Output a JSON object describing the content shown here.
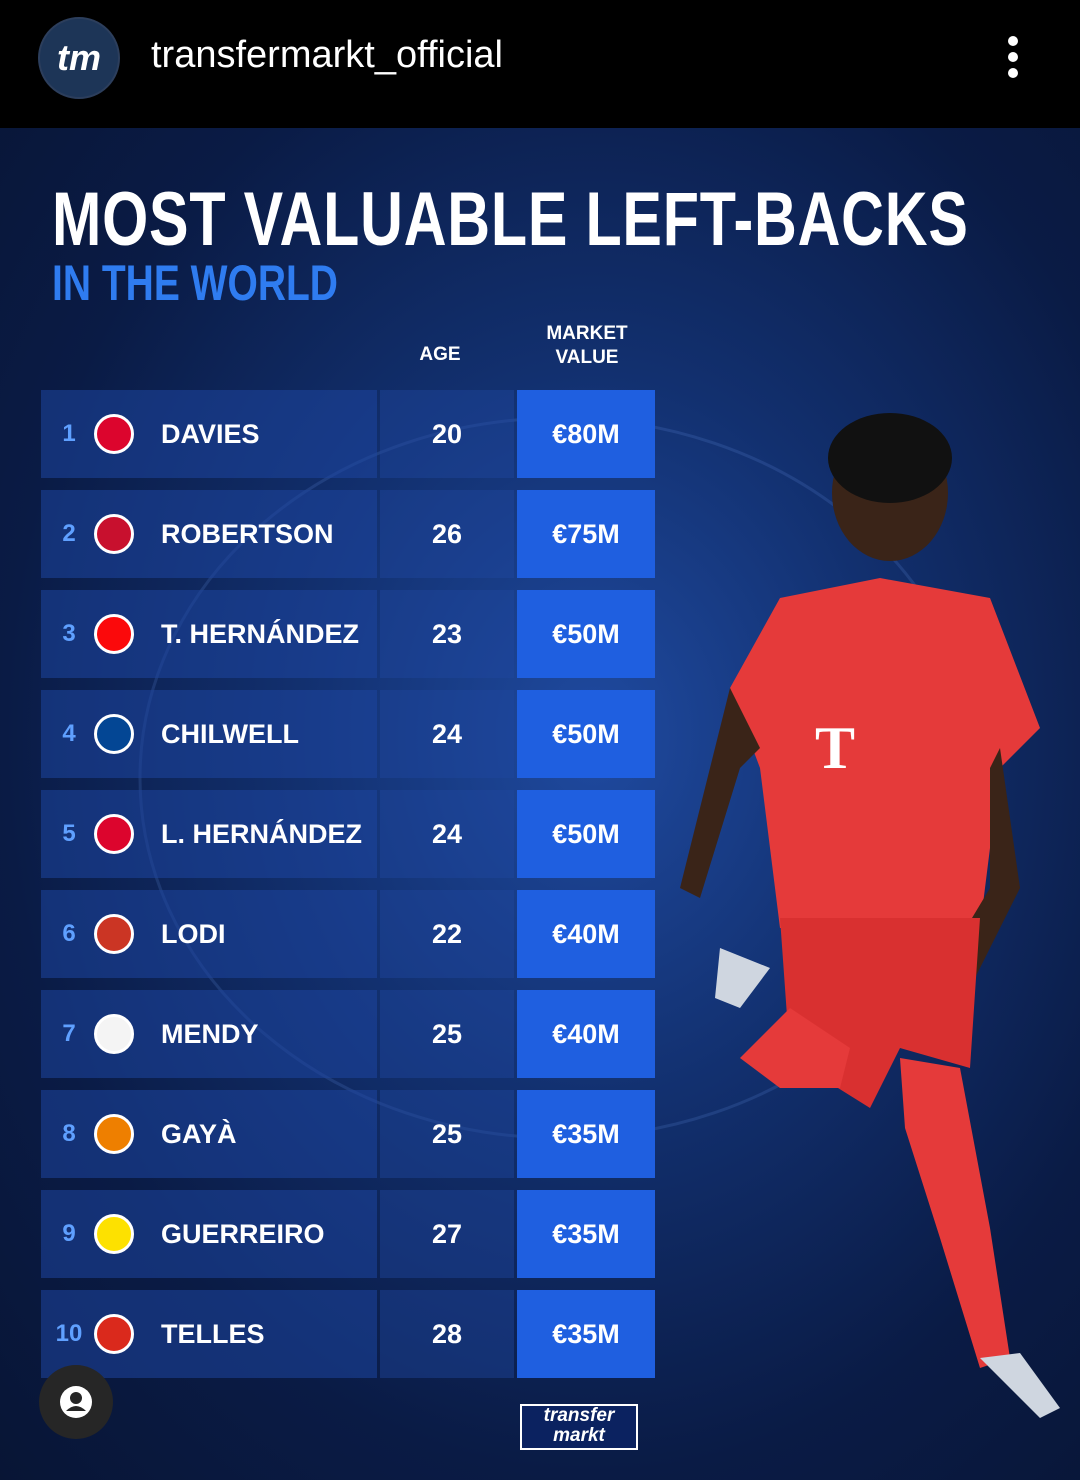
{
  "header": {
    "logo": "tm",
    "account": "transfermarkt_official"
  },
  "post": {
    "title": "MOST VALUABLE LEFT-BACKS",
    "subtitle": "IN THE WORLD",
    "table": {
      "columns": [
        "AGE",
        "MARKET VALUE"
      ],
      "rows": [
        {
          "rank": 1,
          "name": "DAVIES",
          "age": 20,
          "value": "€80M"
        },
        {
          "rank": 2,
          "name": "ROBERTSON",
          "age": 26,
          "value": "€75M"
        },
        {
          "rank": 3,
          "name": "T. HERNÁNDEZ",
          "age": 23,
          "value": "€50M"
        },
        {
          "rank": 4,
          "name": "CHILWELL",
          "age": 24,
          "value": "€50M"
        },
        {
          "rank": 5,
          "name": "L. HERNÁNDEZ",
          "age": 24,
          "value": "€50M"
        },
        {
          "rank": 6,
          "name": "LODI",
          "age": 22,
          "value": "€40M"
        },
        {
          "rank": 7,
          "name": "MENDY",
          "age": 25,
          "value": "€40M"
        },
        {
          "rank": 8,
          "name": "GAYÀ",
          "age": 25,
          "value": "€35M"
        },
        {
          "rank": 9,
          "name": "GUERREIRO",
          "age": 27,
          "value": "€35M"
        },
        {
          "rank": 10,
          "name": "TELLES",
          "age": 28,
          "value": "€35M"
        }
      ]
    },
    "footer_logo": [
      "transfer",
      "markt"
    ]
  }
}
